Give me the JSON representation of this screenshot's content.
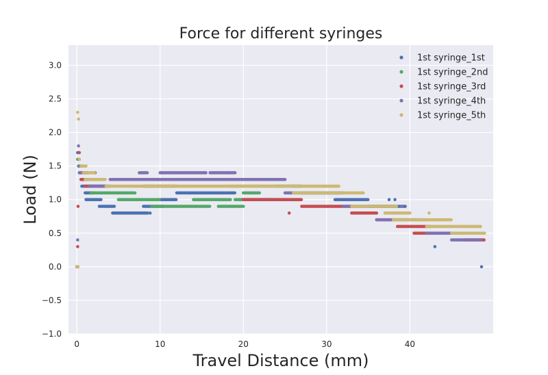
{
  "chart_data": {
    "type": "scatter",
    "title": "Force for different syringes",
    "xlabel": "Travel Distance (mm)",
    "ylabel": "Load (N)",
    "xlim": [
      -1,
      50
    ],
    "ylim": [
      -1.0,
      3.3
    ],
    "xticks": [
      0,
      10,
      20,
      30,
      40
    ],
    "yticks": [
      -1.0,
      -0.5,
      0.0,
      0.5,
      1.0,
      1.5,
      2.0,
      2.5,
      3.0
    ],
    "xtick_labels": [
      "0",
      "10",
      "20",
      "30",
      "40"
    ],
    "ytick_labels": [
      "−1.0",
      "−0.5",
      "0.0",
      "0.5",
      "1.0",
      "1.5",
      "2.0",
      "2.5",
      "3.0"
    ],
    "grid": true,
    "legend_position": "top-right",
    "background": "#eaeaf2",
    "series": [
      {
        "name": "1st syringe_1st",
        "color": "#4c72b0",
        "segments": [
          [
            0.0,
            0.2,
            0.0
          ],
          [
            0.2,
            0.5,
            1.5
          ],
          [
            0.6,
            1.0,
            1.2
          ],
          [
            1.0,
            2.0,
            1.1
          ],
          [
            1.1,
            3.0,
            1.0
          ],
          [
            2.5,
            4.0,
            1.2
          ],
          [
            2.7,
            4.5,
            0.9
          ],
          [
            4.3,
            8.6,
            0.8
          ],
          [
            8.0,
            10.5,
            0.9
          ],
          [
            10.0,
            12.0,
            1.0
          ],
          [
            12.0,
            19.0,
            1.1
          ],
          [
            19.5,
            24.0,
            1.0
          ],
          [
            24.0,
            27.0,
            1.2
          ],
          [
            27.0,
            31.5,
            1.1
          ],
          [
            31.0,
            35.0,
            1.0
          ],
          [
            35.0,
            39.5,
            0.9
          ]
        ],
        "points": [
          [
            0.1,
            1.7
          ],
          [
            0.3,
            1.6
          ],
          [
            8.8,
            0.8
          ],
          [
            43.0,
            0.3
          ],
          [
            48.6,
            0.0
          ],
          [
            37.5,
            1.0
          ],
          [
            38.2,
            1.0
          ]
        ]
      },
      {
        "name": "1st syringe_2nd",
        "color": "#55a868",
        "segments": [
          [
            0.0,
            0.2,
            0.0
          ],
          [
            0.2,
            0.7,
            1.5
          ],
          [
            0.6,
            1.5,
            1.3
          ],
          [
            1.0,
            2.2,
            1.2
          ],
          [
            1.7,
            7.0,
            1.1
          ],
          [
            5.0,
            10.0,
            1.0
          ],
          [
            9.0,
            16.0,
            0.9
          ],
          [
            14.0,
            18.5,
            1.0
          ],
          [
            17.0,
            20.0,
            0.9
          ],
          [
            19.0,
            27.0,
            1.0
          ],
          [
            20.0,
            22.0,
            1.1
          ]
        ],
        "points": [
          [
            0.1,
            1.6
          ],
          [
            0.3,
            1.4
          ]
        ]
      },
      {
        "name": "1st syringe_3rd",
        "color": "#c44e52",
        "segments": [
          [
            0.0,
            0.2,
            0.0
          ],
          [
            0.5,
            0.9,
            1.3
          ],
          [
            1.0,
            3.0,
            1.2
          ],
          [
            8.0,
            12.0,
            1.2
          ],
          [
            20.0,
            27.0,
            1.0
          ],
          [
            27.0,
            33.0,
            0.9
          ],
          [
            33.0,
            36.0,
            0.8
          ],
          [
            36.0,
            40.0,
            0.7
          ],
          [
            38.5,
            42.5,
            0.6
          ],
          [
            40.5,
            44.0,
            0.5
          ],
          [
            46.5,
            49.0,
            0.4
          ]
        ],
        "points": [
          [
            0.1,
            0.3
          ],
          [
            0.15,
            0.9
          ],
          [
            0.3,
            1.7
          ],
          [
            2.2,
            1.4
          ],
          [
            25.5,
            0.8
          ],
          [
            34.5,
            0.9
          ]
        ]
      },
      {
        "name": "1st syringe_4th",
        "color": "#8172b2",
        "segments": [
          [
            0.0,
            0.2,
            0.0
          ],
          [
            0.3,
            1.3,
            1.4
          ],
          [
            1.0,
            2.5,
            1.3
          ],
          [
            1.5,
            3.5,
            1.2
          ],
          [
            4.0,
            9.5,
            1.3
          ],
          [
            7.5,
            8.5,
            1.4
          ],
          [
            9.0,
            10.0,
            1.3
          ],
          [
            10.0,
            15.5,
            1.4
          ],
          [
            10.0,
            22.0,
            1.3
          ],
          [
            16.0,
            19.0,
            1.4
          ],
          [
            22.0,
            25.0,
            1.3
          ],
          [
            25.0,
            32.0,
            1.1
          ],
          [
            32.0,
            38.0,
            0.9
          ],
          [
            36.0,
            42.0,
            0.7
          ],
          [
            42.0,
            45.0,
            0.5
          ],
          [
            45.0,
            48.5,
            0.4
          ]
        ],
        "points": [
          [
            0.1,
            0.4
          ],
          [
            0.2,
            1.8
          ],
          [
            0.3,
            1.5
          ],
          [
            10.2,
            1.4
          ],
          [
            15.5,
            1.4
          ],
          [
            18.0,
            1.4
          ],
          [
            39.0,
            0.9
          ]
        ]
      },
      {
        "name": "1st syringe_5th",
        "color": "#ccb974",
        "segments": [
          [
            0.0,
            0.2,
            0.0
          ],
          [
            0.5,
            1.2,
            1.5
          ],
          [
            0.8,
            2.2,
            1.4
          ],
          [
            1.0,
            3.5,
            1.3
          ],
          [
            3.5,
            31.5,
            1.2
          ],
          [
            18.0,
            26.0,
            1.2
          ],
          [
            26.0,
            34.5,
            1.1
          ],
          [
            33.0,
            38.5,
            0.9
          ],
          [
            37.0,
            40.0,
            0.8
          ],
          [
            38.0,
            45.0,
            0.7
          ],
          [
            42.0,
            48.5,
            0.6
          ],
          [
            45.0,
            49.0,
            0.5
          ]
        ],
        "points": [
          [
            0.1,
            2.3
          ],
          [
            0.2,
            2.2
          ],
          [
            0.3,
            1.6
          ],
          [
            1.2,
            1.4
          ],
          [
            42.3,
            0.8
          ]
        ]
      }
    ]
  }
}
